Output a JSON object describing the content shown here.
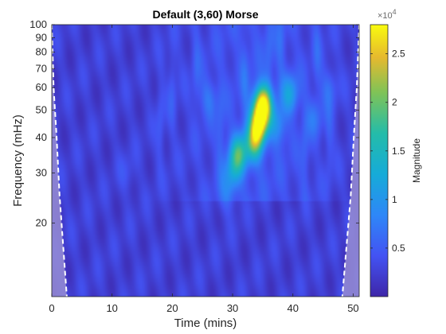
{
  "chart_data": {
    "type": "heatmap",
    "title": "Default (3,60) Morse",
    "xlabel": "Time (mins)",
    "ylabel": "Frequency (mHz)",
    "xlim": [
      0,
      51
    ],
    "ylim": [
      11,
      100
    ],
    "y_scale": "log",
    "x_ticks": [
      0,
      10,
      20,
      30,
      40,
      50
    ],
    "x_tick_labels": [
      "0",
      "10",
      "20",
      "30",
      "40",
      "50"
    ],
    "y_ticks": [
      20,
      30,
      40,
      50,
      60,
      70,
      80,
      90,
      100
    ],
    "y_tick_labels": [
      "20",
      "30",
      "40",
      "50",
      "60",
      "70",
      "80",
      "90",
      "100"
    ],
    "colorbar": {
      "label": "Magnitude",
      "exponent_label": "×10",
      "exponent_power": "4",
      "range": [
        0,
        28000
      ],
      "ticks": [
        5000,
        10000,
        15000,
        20000,
        25000
      ],
      "tick_labels": [
        "0.5",
        "1",
        "1.5",
        "2",
        "2.5"
      ]
    },
    "colormap": "parula",
    "cone_of_influence": {
      "style": "white dashed line with shaded exterior",
      "left_edge": [
        [
          0,
          100
        ],
        [
          0.3,
          60
        ],
        [
          0.8,
          40
        ],
        [
          1.3,
          25
        ],
        [
          2.5,
          11
        ]
      ],
      "right_edge": [
        [
          51,
          100
        ],
        [
          50.6,
          60
        ],
        [
          50.1,
          40
        ],
        [
          49.6,
          25
        ],
        [
          48.2,
          11
        ]
      ]
    },
    "hotspots": [
      {
        "time": 35.0,
        "freq": 52,
        "magnitude": 28000
      },
      {
        "time": 34.3,
        "freq": 44,
        "magnitude": 23000
      },
      {
        "time": 33.5,
        "freq": 38,
        "magnitude": 15000
      },
      {
        "time": 31.0,
        "freq": 35,
        "magnitude": 15500
      },
      {
        "time": 39.5,
        "freq": 57,
        "magnitude": 10000
      },
      {
        "time": 37.5,
        "freq": 44,
        "magnitude": 8000
      },
      {
        "time": 30.0,
        "freq": 30,
        "magnitude": 8500
      },
      {
        "time": 29.0,
        "freq": 25,
        "magnitude": 5500
      },
      {
        "time": 26.0,
        "freq": 55,
        "magnitude": 6000
      },
      {
        "time": 43.5,
        "freq": 47,
        "magnitude": 6000
      },
      {
        "time": 46.0,
        "freq": 60,
        "magnitude": 5500
      },
      {
        "time": 12.5,
        "freq": 30,
        "magnitude": 4000
      }
    ]
  }
}
